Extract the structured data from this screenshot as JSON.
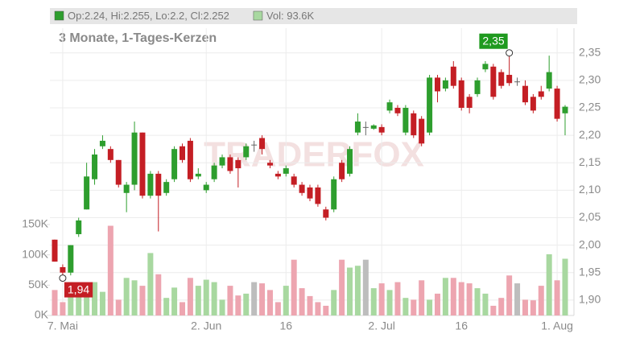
{
  "chart_data": {
    "type": "candlestick",
    "subtitle": "3 Monate, 1-Tages-Kerzen",
    "watermark": "TRADERFOX",
    "legend": [
      {
        "label": "Op:2.24, Hi:2.255, Lo:2.2, Cl:2.252",
        "color": "#2e9e2e"
      },
      {
        "label": "Vol: 93.6K",
        "color": "#a8d8a0"
      }
    ],
    "categories": [
      null,
      "7. Mai",
      null,
      null,
      null,
      null,
      null,
      null,
      null,
      null,
      null,
      null,
      null,
      null,
      null,
      null,
      null,
      null,
      null,
      "2. Jun",
      null,
      null,
      null,
      null,
      null,
      null,
      null,
      null,
      null,
      "16",
      null,
      null,
      null,
      null,
      null,
      null,
      null,
      null,
      null,
      null,
      null,
      "2. Jul",
      null,
      null,
      null,
      null,
      null,
      null,
      null,
      null,
      null,
      "16",
      null,
      null,
      null,
      null,
      null,
      null,
      null,
      null,
      null,
      null,
      null,
      "1. Aug",
      null
    ],
    "open": [
      2.01,
      1.96,
      1.95,
      2.02,
      2.065,
      2.12,
      2.18,
      2.175,
      2.155,
      2.095,
      2.11,
      2.205,
      2.09,
      2.13,
      2.095,
      2.12,
      2.18,
      2.19,
      2.125,
      2.1,
      2.12,
      2.145,
      2.16,
      2.155,
      2.16,
      2.183,
      2.195,
      2.15,
      2.13,
      2.13,
      2.125,
      2.11,
      2.105,
      2.105,
      2.065,
      2.065,
      2.15,
      2.13,
      2.205,
      2.215,
      2.212,
      2.215,
      2.245,
      2.25,
      2.205,
      2.24,
      2.23,
      2.205,
      2.305,
      2.285,
      2.325,
      2.3,
      2.27,
      2.275,
      2.32,
      2.325,
      2.315,
      2.31,
      2.298,
      2.29,
      2.27,
      2.28,
      2.285,
      2.285,
      2.24
    ],
    "high": [
      2.01,
      1.965,
      2.0,
      2.05,
      2.15,
      2.175,
      2.2,
      2.18,
      2.155,
      2.115,
      2.225,
      2.205,
      2.135,
      2.135,
      2.12,
      2.18,
      2.185,
      2.195,
      2.14,
      2.115,
      2.15,
      2.165,
      2.165,
      2.16,
      2.185,
      2.19,
      2.2,
      2.155,
      2.135,
      2.145,
      2.13,
      2.115,
      2.11,
      2.11,
      2.07,
      2.125,
      2.155,
      2.18,
      2.24,
      2.225,
      2.22,
      2.22,
      2.265,
      2.255,
      2.255,
      2.245,
      2.235,
      2.31,
      2.31,
      2.305,
      2.335,
      2.305,
      2.275,
      2.305,
      2.335,
      2.33,
      2.32,
      2.35,
      2.305,
      2.3,
      2.275,
      2.29,
      2.345,
      2.29,
      2.255
    ],
    "low": [
      1.97,
      1.94,
      1.945,
      2.015,
      2.065,
      2.11,
      2.175,
      2.15,
      2.105,
      2.06,
      2.1,
      2.085,
      2.085,
      2.025,
      2.09,
      2.115,
      2.15,
      2.115,
      2.12,
      2.095,
      2.115,
      2.14,
      2.13,
      2.105,
      2.155,
      2.17,
      2.165,
      2.14,
      2.12,
      2.125,
      2.105,
      2.09,
      2.08,
      2.07,
      2.045,
      2.06,
      2.115,
      2.125,
      2.2,
      2.2,
      2.21,
      2.2,
      2.24,
      2.235,
      2.2,
      2.195,
      2.18,
      2.2,
      2.26,
      2.28,
      2.285,
      2.245,
      2.24,
      2.27,
      2.315,
      2.265,
      2.285,
      2.29,
      2.29,
      2.255,
      2.24,
      2.265,
      2.28,
      2.225,
      2.2
    ],
    "close": [
      1.97,
      1.95,
      2.0,
      2.045,
      2.125,
      2.165,
      2.19,
      2.155,
      2.11,
      2.11,
      2.205,
      2.09,
      2.13,
      2.09,
      2.115,
      2.175,
      2.155,
      2.12,
      2.13,
      2.11,
      2.145,
      2.16,
      2.135,
      2.14,
      2.18,
      2.183,
      2.175,
      2.145,
      2.125,
      2.14,
      2.11,
      2.095,
      2.085,
      2.075,
      2.05,
      2.12,
      2.12,
      2.175,
      2.225,
      2.215,
      2.218,
      2.205,
      2.26,
      2.24,
      2.25,
      2.2,
      2.185,
      2.305,
      2.28,
      2.3,
      2.29,
      2.25,
      2.25,
      2.3,
      2.33,
      2.27,
      2.29,
      2.295,
      2.298,
      2.26,
      2.245,
      2.27,
      2.315,
      2.23,
      2.252
    ],
    "volume": [
      42,
      22,
      55,
      38,
      49,
      55,
      39,
      148,
      26,
      62,
      58,
      49,
      103,
      68,
      29,
      46,
      22,
      62,
      49,
      59,
      55,
      26,
      49,
      33,
      36,
      55,
      53,
      42,
      22,
      49,
      92,
      45,
      32,
      22,
      16,
      42,
      92,
      79,
      82,
      92,
      45,
      53,
      42,
      55,
      29,
      26,
      58,
      26,
      36,
      62,
      62,
      55,
      53,
      45,
      36,
      16,
      29,
      66,
      53,
      26,
      25,
      49,
      101,
      58,
      93.6
    ],
    "up_color": "#2e9e2e",
    "down_color": "#c41e24",
    "flat_color": "#666666",
    "volume_up_color": "#a8d8a0",
    "volume_down_color": "#eda5b0",
    "volume_flat_color": "#bdbdbd",
    "ylim": [
      1.872,
      2.395
    ],
    "yticks": [
      {
        "value": 1.9,
        "label": "1,90"
      },
      {
        "value": 1.95,
        "label": "1,95"
      },
      {
        "value": 2.0,
        "label": "2,00"
      },
      {
        "value": 2.05,
        "label": "2,05"
      },
      {
        "value": 2.1,
        "label": "2,10"
      },
      {
        "value": 2.15,
        "label": "2,15"
      },
      {
        "value": 2.2,
        "label": "2,20"
      },
      {
        "value": 2.25,
        "label": "2,25"
      },
      {
        "value": 2.3,
        "label": "2,30"
      },
      {
        "value": 2.35,
        "label": "2,35"
      }
    ],
    "y2lim": [
      0,
      474
    ],
    "y2ticks": [
      {
        "value": 0,
        "label": "0K"
      },
      {
        "value": 50,
        "label": "50K"
      },
      {
        "value": 100,
        "label": "100K"
      },
      {
        "value": 150,
        "label": "150K"
      }
    ],
    "annotations": [
      {
        "value": 2.35,
        "label": "2,35",
        "at": "high",
        "color": "#1f9a1f"
      },
      {
        "value": 1.94,
        "label": "1,94",
        "at": "low",
        "color": "#c41e24"
      }
    ],
    "grid": true
  }
}
